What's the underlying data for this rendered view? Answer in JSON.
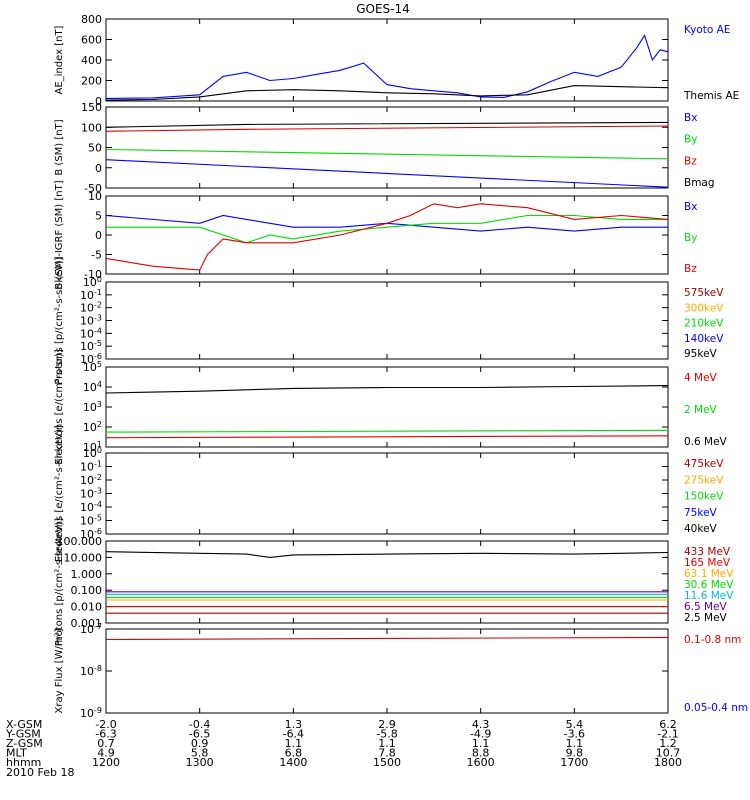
{
  "title": "GOES-14",
  "date_label": "2010 Feb 18",
  "colors": {
    "black": "#000000",
    "blue": "#0000ff",
    "green": "#00dd00",
    "red": "#dd0000",
    "darkred": "#aa0000",
    "orange": "#ffaa00",
    "cyan": "#00bbdd",
    "purple": "#660099"
  },
  "chart_data": [
    {
      "type": "line",
      "ylabel": "AE_index [nT]",
      "ylim": [
        0,
        800
      ],
      "log": false,
      "yticks": [
        "0",
        "200",
        "400",
        "600",
        "800"
      ],
      "series": [
        {
          "name": "Kyoto AE",
          "color": "blue",
          "x": [
            1200,
            1230,
            1300,
            1315,
            1330,
            1345,
            1400,
            1415,
            1430,
            1445,
            1500,
            1515,
            1530,
            1545,
            1600,
            1615,
            1630,
            1645,
            1700,
            1715,
            1730,
            1740,
            1745,
            1750,
            1755,
            1800
          ],
          "values": [
            25,
            30,
            60,
            240,
            280,
            200,
            220,
            260,
            300,
            370,
            160,
            120,
            100,
            80,
            40,
            35,
            90,
            190,
            280,
            240,
            330,
            520,
            640,
            400,
            500,
            480
          ]
        },
        {
          "name": "Themis AE",
          "color": "black",
          "x": [
            1200,
            1230,
            1300,
            1330,
            1400,
            1430,
            1500,
            1530,
            1600,
            1630,
            1700,
            1730,
            1800
          ],
          "values": [
            10,
            15,
            40,
            100,
            110,
            100,
            80,
            70,
            50,
            60,
            150,
            140,
            130
          ]
        }
      ]
    },
    {
      "type": "line",
      "ylabel": "B (SM) [nT]",
      "ylim": [
        -50,
        150
      ],
      "log": false,
      "yticks": [
        "-50",
        "0",
        "50",
        "100",
        "150"
      ],
      "series": [
        {
          "name": "Bx",
          "color": "blue",
          "x": [
            1200,
            1800
          ],
          "values": [
            20,
            -48
          ]
        },
        {
          "name": "By",
          "color": "green",
          "x": [
            1200,
            1800
          ],
          "values": [
            45,
            22
          ]
        },
        {
          "name": "Bz",
          "color": "red",
          "x": [
            1200,
            1330,
            1800
          ],
          "values": [
            90,
            95,
            103
          ]
        },
        {
          "name": "Bmag",
          "color": "black",
          "x": [
            1200,
            1330,
            1800
          ],
          "values": [
            100,
            107,
            112
          ]
        }
      ]
    },
    {
      "type": "line",
      "ylabel": "B (SM)-IGRF (SM) [nT]",
      "ylim": [
        -10,
        10
      ],
      "log": false,
      "yticks": [
        "-10",
        "-5",
        "0",
        "5",
        "10"
      ],
      "series": [
        {
          "name": "Bx",
          "color": "blue",
          "x": [
            1200,
            1300,
            1315,
            1330,
            1345,
            1400,
            1430,
            1500,
            1530,
            1600,
            1630,
            1700,
            1730,
            1800
          ],
          "values": [
            5,
            3,
            5,
            4,
            3,
            2,
            2,
            3,
            2,
            1,
            2,
            1,
            2,
            2
          ]
        },
        {
          "name": "By",
          "color": "green",
          "x": [
            1200,
            1300,
            1315,
            1330,
            1345,
            1400,
            1430,
            1500,
            1530,
            1600,
            1630,
            1700,
            1730,
            1800
          ],
          "values": [
            2,
            2,
            0,
            -2,
            0,
            -1,
            1,
            2,
            3,
            3,
            5,
            5,
            4,
            4
          ]
        },
        {
          "name": "Bz",
          "color": "red",
          "x": [
            1200,
            1230,
            1300,
            1305,
            1315,
            1330,
            1400,
            1430,
            1500,
            1515,
            1530,
            1545,
            1600,
            1630,
            1700,
            1730,
            1800
          ],
          "values": [
            -6,
            -8,
            -9,
            -5,
            -1,
            -2,
            -2,
            0,
            3,
            5,
            8,
            7,
            8,
            7,
            4,
            5,
            4
          ]
        }
      ]
    },
    {
      "type": "line",
      "ylabel": "Protons [p/(cm²-s-sr-keV)]",
      "ylim": [
        -6,
        0
      ],
      "log": true,
      "yticks": [
        "10^-6",
        "10^-5",
        "10^-4",
        "10^-3",
        "10^-2",
        "10^-1",
        "10^0"
      ],
      "series": [
        {
          "name": "575keV",
          "color": "darkred",
          "x": [],
          "values": []
        },
        {
          "name": "300keV",
          "color": "orange",
          "x": [],
          "values": []
        },
        {
          "name": "210keV",
          "color": "green",
          "x": [],
          "values": []
        },
        {
          "name": "140keV",
          "color": "blue",
          "x": [],
          "values": []
        },
        {
          "name": "95keV",
          "color": "black",
          "x": [],
          "values": []
        }
      ]
    },
    {
      "type": "line",
      "ylabel": "Electrons [e/(cm²-s-sr)]",
      "ylim": [
        0.7,
        5
      ],
      "log": true,
      "yticks": [
        "10^1",
        "10^2",
        "10^3",
        "10^4",
        "10^5"
      ],
      "series": [
        {
          "name": "4 MeV",
          "color": "red",
          "x": [
            1200,
            1800
          ],
          "values": [
            1.2,
            1.3
          ]
        },
        {
          "name": "2 MeV",
          "color": "green",
          "x": [
            1200,
            1800
          ],
          "values": [
            1.5,
            1.6
          ]
        },
        {
          "name": "0.6 MeV",
          "color": "black",
          "x": [
            1200,
            1300,
            1400,
            1500,
            1600,
            1700,
            1800
          ],
          "values": [
            3.6,
            3.7,
            3.85,
            3.9,
            3.9,
            3.95,
            4.0
          ]
        }
      ]
    },
    {
      "type": "line",
      "ylabel": "Electrons [e/(cm²-s-sr-keV)]",
      "ylim": [
        -6,
        0
      ],
      "log": true,
      "yticks": [
        "10^-6",
        "10^-5",
        "10^-4",
        "10^-3",
        "10^-2",
        "10^-1",
        "10^0"
      ],
      "series": [
        {
          "name": "475keV",
          "color": "darkred",
          "x": [],
          "values": []
        },
        {
          "name": "275keV",
          "color": "orange",
          "x": [],
          "values": []
        },
        {
          "name": "150keV",
          "color": "green",
          "x": [],
          "values": []
        },
        {
          "name": "75keV",
          "color": "blue",
          "x": [],
          "values": []
        },
        {
          "name": "40keV",
          "color": "black",
          "x": [],
          "values": []
        }
      ]
    },
    {
      "type": "line",
      "ylabel": "Protons [p/(cm²-s-sr-keV)]",
      "ylim": [
        -3,
        2
      ],
      "log": true,
      "yticks": [
        "0.001",
        "0.010",
        "0.100",
        "1.000",
        "10.000",
        "100.000"
      ],
      "series": [
        {
          "name": "433 MeV",
          "color": "darkred",
          "x": [
            1200,
            1800
          ],
          "values": [
            -2.4,
            -2.4
          ]
        },
        {
          "name": "165 MeV",
          "color": "red",
          "x": [
            1200,
            1800
          ],
          "values": [
            -2.0,
            -2.0
          ]
        },
        {
          "name": "63.1 MeV",
          "color": "orange",
          "x": [
            1200,
            1800
          ],
          "values": [
            -1.6,
            -1.6
          ]
        },
        {
          "name": "30.6 MeV",
          "color": "green",
          "x": [
            1200,
            1800
          ],
          "values": [
            -1.45,
            -1.45
          ]
        },
        {
          "name": "11.6 MeV",
          "color": "cyan",
          "x": [
            1200,
            1800
          ],
          "values": [
            -1.25,
            -1.25
          ]
        },
        {
          "name": "6.5 MeV",
          "color": "purple",
          "x": [
            1200,
            1800
          ],
          "values": [
            -1.1,
            -1.1
          ]
        },
        {
          "name": "2.5 MeV",
          "color": "black",
          "x": [
            1200,
            1300,
            1330,
            1345,
            1400,
            1500,
            1600,
            1700,
            1800
          ],
          "values": [
            1.35,
            1.25,
            1.2,
            1.0,
            1.15,
            1.2,
            1.25,
            1.2,
            1.3
          ]
        }
      ]
    },
    {
      "type": "line",
      "ylabel": "Xray Flux [W/m²]",
      "ylim": [
        -9,
        -7
      ],
      "log": true,
      "yticks": [
        "10^-9",
        "10^-8",
        "10^-7"
      ],
      "series": [
        {
          "name": "0.1-0.8 nm",
          "color": "red",
          "x": [
            1200,
            1800
          ],
          "values": [
            -7.25,
            -7.2
          ]
        },
        {
          "name": "0.05-0.4 nm",
          "color": "blue",
          "x": [],
          "values": []
        }
      ]
    }
  ],
  "x_axis": {
    "rows": [
      {
        "label": "X-GSM",
        "values": [
          "-2.0",
          "-0.4",
          "1.3",
          "2.9",
          "4.3",
          "5.4",
          "6.2"
        ]
      },
      {
        "label": "Y-GSM",
        "values": [
          "-6.3",
          "-6.5",
          "-6.4",
          "-5.8",
          "-4.9",
          "-3.6",
          "-2.1"
        ]
      },
      {
        "label": "Z-GSM",
        "values": [
          "0.7",
          "0.9",
          "1.1",
          "1.1",
          "1.1",
          "1.1",
          "1.2"
        ]
      },
      {
        "label": "MLT",
        "values": [
          "4.9",
          "5.8",
          "6.8",
          "7.8",
          "8.8",
          "9.8",
          "10.7"
        ]
      },
      {
        "label": "hhmm",
        "values": [
          "1200",
          "1300",
          "1400",
          "1500",
          "1600",
          "1700",
          "1800"
        ]
      }
    ],
    "range": [
      1200,
      1800
    ]
  }
}
